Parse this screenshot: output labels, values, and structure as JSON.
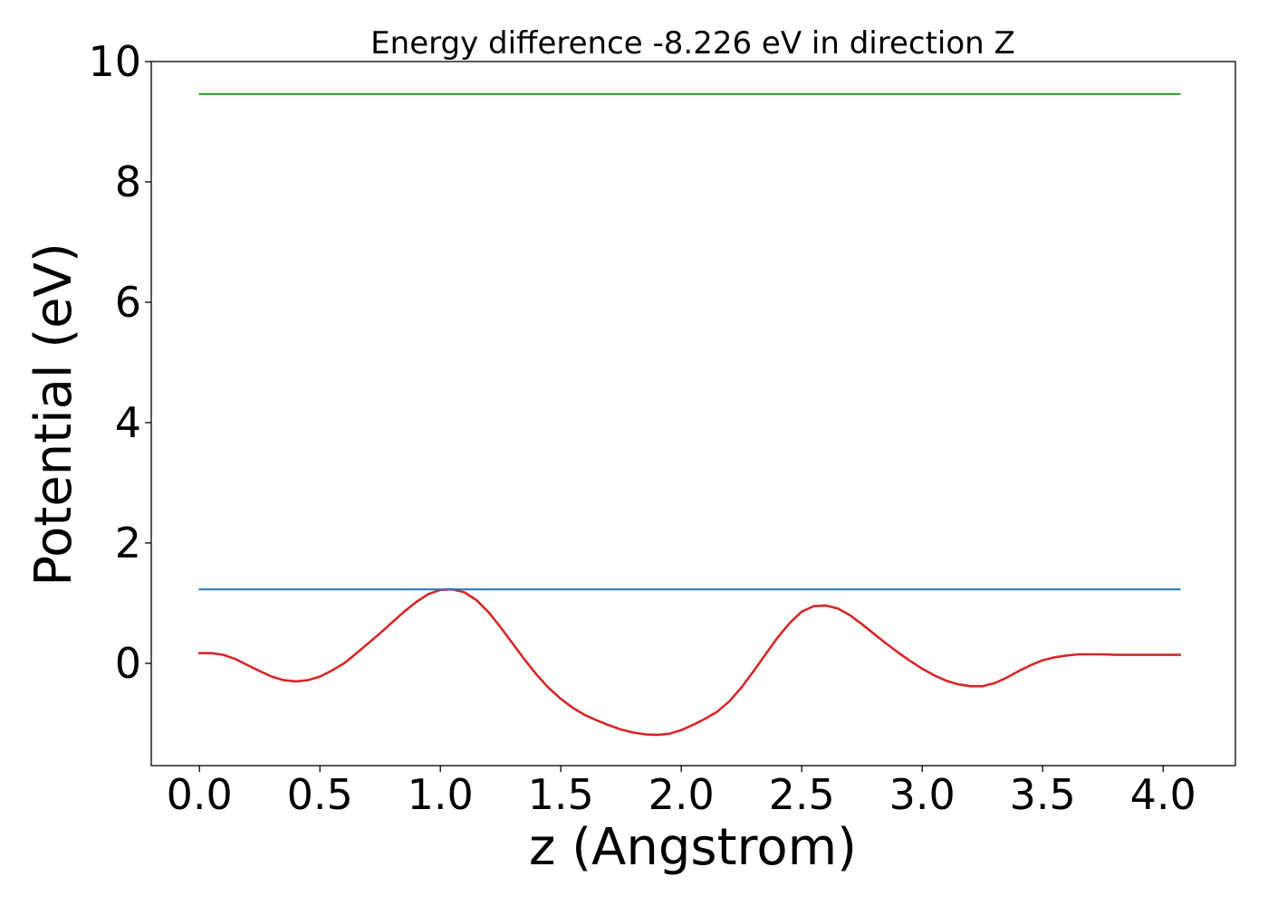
{
  "chart_data": {
    "type": "line",
    "title": "Energy difference -8.226 eV in direction Z",
    "xlabel": "z (Angstrom)",
    "ylabel": "Potential (eV)",
    "xlim": [
      -0.2,
      4.3
    ],
    "ylim": [
      -1.7,
      10
    ],
    "xticks": [
      0.0,
      0.5,
      1.0,
      1.5,
      2.0,
      2.5,
      3.0,
      3.5,
      4.0
    ],
    "xtick_labels": [
      "0.0",
      "0.5",
      "1.0",
      "1.5",
      "2.0",
      "2.5",
      "3.0",
      "3.5",
      "4.0"
    ],
    "yticks": [
      0,
      2,
      4,
      6,
      8,
      10
    ],
    "ytick_labels": [
      "0",
      "2",
      "4",
      "6",
      "8",
      "10"
    ],
    "grid": false,
    "legend": "none",
    "series": [
      {
        "kind": "curve",
        "color": "#d62728",
        "x": [
          0.0,
          0.05,
          0.1,
          0.15,
          0.2,
          0.25,
          0.3,
          0.35,
          0.4,
          0.45,
          0.5,
          0.55,
          0.6,
          0.65,
          0.7,
          0.75,
          0.8,
          0.85,
          0.9,
          0.95,
          1.0,
          1.05,
          1.1,
          1.15,
          1.2,
          1.25,
          1.3,
          1.35,
          1.4,
          1.45,
          1.5,
          1.55,
          1.6,
          1.65,
          1.7,
          1.75,
          1.8,
          1.85,
          1.9,
          1.95,
          2.0,
          2.05,
          2.1,
          2.15,
          2.2,
          2.25,
          2.3,
          2.35,
          2.4,
          2.45,
          2.5,
          2.55,
          2.6,
          2.65,
          2.7,
          2.75,
          2.8,
          2.85,
          2.9,
          2.95,
          3.0,
          3.05,
          3.1,
          3.15,
          3.2,
          3.25,
          3.3,
          3.35,
          3.4,
          3.45,
          3.5,
          3.55,
          3.6,
          3.65,
          3.7,
          3.75,
          3.8,
          3.85,
          3.9,
          3.95,
          4.0,
          4.07
        ],
        "y": [
          0.17,
          0.17,
          0.14,
          0.07,
          -0.03,
          -0.13,
          -0.22,
          -0.28,
          -0.3,
          -0.28,
          -0.22,
          -0.12,
          0.0,
          0.16,
          0.33,
          0.5,
          0.68,
          0.86,
          1.02,
          1.15,
          1.22,
          1.23,
          1.18,
          1.05,
          0.85,
          0.6,
          0.33,
          0.06,
          -0.19,
          -0.41,
          -0.59,
          -0.74,
          -0.86,
          -0.95,
          -1.03,
          -1.1,
          -1.15,
          -1.18,
          -1.19,
          -1.17,
          -1.11,
          -1.02,
          -0.92,
          -0.8,
          -0.63,
          -0.4,
          -0.13,
          0.15,
          0.43,
          0.67,
          0.86,
          0.95,
          0.96,
          0.91,
          0.8,
          0.65,
          0.49,
          0.33,
          0.18,
          0.04,
          -0.09,
          -0.2,
          -0.29,
          -0.35,
          -0.38,
          -0.38,
          -0.33,
          -0.24,
          -0.13,
          -0.03,
          0.05,
          0.1,
          0.13,
          0.15,
          0.15,
          0.15,
          0.14,
          0.14,
          0.14,
          0.14,
          0.14,
          0.14
        ]
      },
      {
        "kind": "horizontal",
        "color": "#1f77b4",
        "x": [
          0.0,
          4.07
        ],
        "y": [
          1.23,
          1.23
        ]
      },
      {
        "kind": "horizontal",
        "color": "#2ca02c",
        "x": [
          0.0,
          4.07
        ],
        "y": [
          9.46,
          9.46
        ]
      }
    ]
  }
}
